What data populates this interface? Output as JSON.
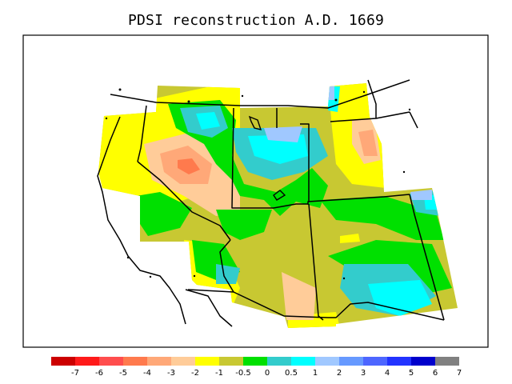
{
  "title": "PDSI reconstruction A.D. 1669",
  "legend": {
    "colors": [
      "#cc0000",
      "#ff1a1a",
      "#ff4d4d",
      "#ff7a4d",
      "#ffa878",
      "#ffcc99",
      "#ffff00",
      "#c8c832",
      "#00e000",
      "#33cccc",
      "#00ffff",
      "#a0c8ff",
      "#6699ff",
      "#4d66ff",
      "#2233ff",
      "#0000cc",
      "#808080"
    ],
    "labels": [
      "-7",
      "-6",
      "-5",
      "-4",
      "-3",
      "-2",
      "-1",
      "-0.5",
      "0",
      "0.5",
      "1",
      "2",
      "3",
      "4",
      "5",
      "6",
      "7"
    ]
  },
  "palette": {
    "yellow": "#ffff00",
    "olive": "#c8c832",
    "peach": "#ffcc99",
    "salmon": "#ffa878",
    "orange": "#ff7a4d",
    "green": "#00e000",
    "teal": "#33cccc",
    "cyan": "#00ffff",
    "lightblue": "#a0c8ff"
  }
}
